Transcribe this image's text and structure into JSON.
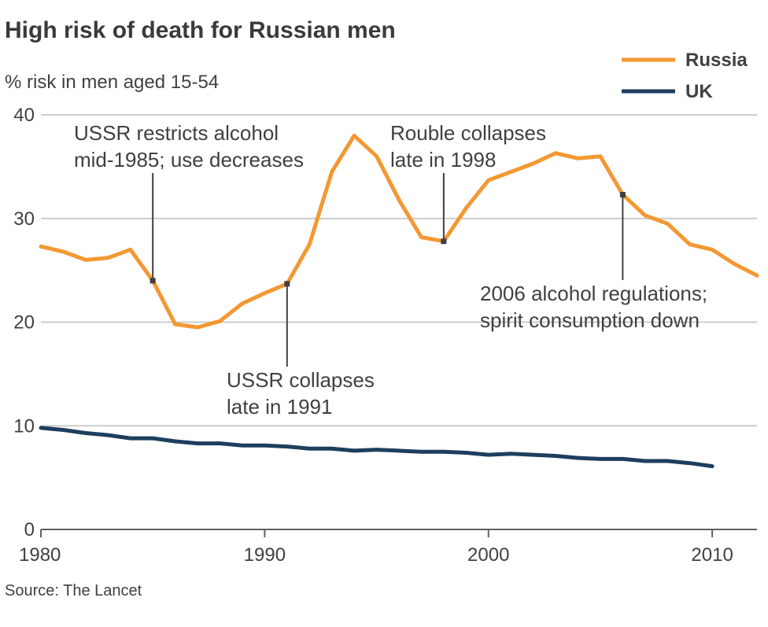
{
  "colors": {
    "russia": "#f39833",
    "uk": "#1d3f5e",
    "grid": "#cccccc",
    "text": "#404040"
  },
  "source": "Source: The Lancet",
  "chart_data": {
    "type": "line",
    "title": "High risk of death for Russian men",
    "subtitle": "% risk in men aged 15-54",
    "xlim": [
      1980,
      2012
    ],
    "ylim": [
      0,
      40
    ],
    "xticks": [
      1980,
      1990,
      2000,
      2010
    ],
    "yticks": [
      0,
      10,
      20,
      30,
      40
    ],
    "grid": true,
    "legend": {
      "placement": "top-right",
      "entries": [
        "Russia",
        "UK"
      ]
    },
    "series": [
      {
        "name": "Russia",
        "color": "#f39833",
        "x": [
          1980,
          1981,
          1982,
          1983,
          1984,
          1985,
          1986,
          1987,
          1988,
          1989,
          1990,
          1991,
          1992,
          1993,
          1994,
          1995,
          1996,
          1997,
          1998,
          1999,
          2000,
          2001,
          2002,
          2003,
          2004,
          2005,
          2006,
          2007,
          2008,
          2009,
          2010,
          2011,
          2012
        ],
        "values": [
          27.3,
          26.8,
          26.0,
          26.2,
          27.0,
          24.0,
          19.8,
          19.5,
          20.1,
          21.8,
          22.8,
          23.7,
          27.5,
          34.5,
          38.0,
          36.0,
          31.8,
          28.2,
          27.8,
          31.0,
          33.7,
          34.5,
          35.3,
          36.3,
          35.8,
          36.0,
          32.3,
          30.3,
          29.5,
          27.5,
          27.0,
          25.6,
          24.5
        ]
      },
      {
        "name": "UK",
        "color": "#1d3f5e",
        "x": [
          1980,
          1981,
          1982,
          1983,
          1984,
          1985,
          1986,
          1987,
          1988,
          1989,
          1990,
          1991,
          1992,
          1993,
          1994,
          1995,
          1996,
          1997,
          1998,
          1999,
          2000,
          2001,
          2002,
          2003,
          2004,
          2005,
          2006,
          2007,
          2008,
          2009,
          2010
        ],
        "values": [
          9.8,
          9.6,
          9.3,
          9.1,
          8.8,
          8.8,
          8.5,
          8.3,
          8.3,
          8.1,
          8.1,
          8.0,
          7.8,
          7.8,
          7.6,
          7.7,
          7.6,
          7.5,
          7.5,
          7.4,
          7.2,
          7.3,
          7.2,
          7.1,
          6.9,
          6.8,
          6.8,
          6.6,
          6.6,
          6.4,
          6.1
        ]
      }
    ],
    "annotations": [
      {
        "lines": [
          "USSR restricts alcohol",
          "mid-1985; use decreases"
        ],
        "x": 1985,
        "y": 24.0
      },
      {
        "lines": [
          "USSR collapses",
          "late in 1991"
        ],
        "x": 1991,
        "y": 23.7
      },
      {
        "lines": [
          "Rouble collapses",
          "late in 1998"
        ],
        "x": 1998,
        "y": 27.8
      },
      {
        "lines": [
          "2006 alcohol regulations;",
          "spirit consumption down"
        ],
        "x": 2006,
        "y": 32.3
      }
    ]
  }
}
